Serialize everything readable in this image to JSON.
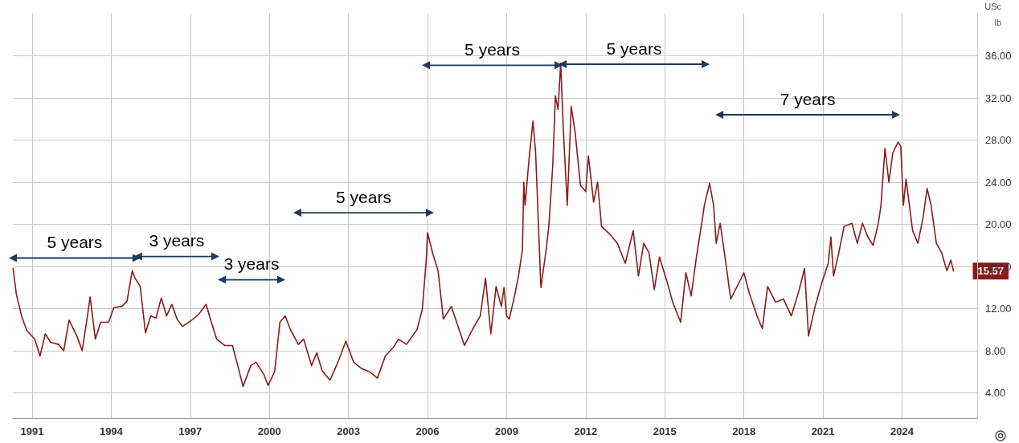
{
  "chart_data": {
    "type": "line",
    "xlim": [
      1990.27,
      2026.85
    ],
    "ylim": [
      1.6,
      40
    ],
    "xticks": [
      1991,
      1994,
      1997,
      2000,
      2003,
      2006,
      2009,
      2012,
      2015,
      2018,
      2021,
      2024
    ],
    "yticks": [
      {
        "value": 4,
        "label": "4.00"
      },
      {
        "value": 8,
        "label": "8.00"
      },
      {
        "value": 12,
        "label": "12.00"
      },
      {
        "value": 16,
        "label": "16.00"
      },
      {
        "value": 20,
        "label": "20.00"
      },
      {
        "value": 24,
        "label": "24.00"
      },
      {
        "value": 28,
        "label": "28.00"
      },
      {
        "value": 32,
        "label": "32.00"
      },
      {
        "value": 36,
        "label": "36.00"
      }
    ],
    "grid": true,
    "line_style": "solid",
    "series": [
      {
        "color": "#8b1a1a",
        "marker": "none",
        "x": [
          1990.28,
          1990.4,
          1990.6,
          1990.8,
          1991.1,
          1991.3,
          1991.5,
          1991.7,
          1992.0,
          1992.2,
          1992.4,
          1992.7,
          1992.9,
          1993.1,
          1993.2,
          1993.4,
          1993.6,
          1993.9,
          1994.1,
          1994.4,
          1994.6,
          1994.8,
          1994.9,
          1995.1,
          1995.3,
          1995.5,
          1995.7,
          1995.9,
          1996.1,
          1996.3,
          1996.5,
          1996.7,
          1997.0,
          1997.3,
          1997.6,
          1997.8,
          1998.0,
          1998.3,
          1998.6,
          1998.8,
          1999.0,
          1999.3,
          1999.5,
          1999.8,
          1999.95,
          2000.2,
          2000.4,
          2000.6,
          2000.8,
          2001.1,
          2001.3,
          2001.6,
          2001.8,
          2002.0,
          2002.3,
          2002.6,
          2002.9,
          2003.2,
          2003.5,
          2003.8,
          2004.1,
          2004.4,
          2004.7,
          2004.9,
          2005.2,
          2005.6,
          2005.8,
          2005.95,
          2006.0,
          2006.2,
          2006.4,
          2006.6,
          2006.9,
          2007.2,
          2007.4,
          2007.7,
          2008.0,
          2008.2,
          2008.4,
          2008.6,
          2008.8,
          2008.9,
          2009.0,
          2009.1,
          2009.3,
          2009.45,
          2009.6,
          2009.65,
          2009.7,
          2009.85,
          2010.0,
          2010.1,
          2010.3,
          2010.5,
          2010.6,
          2010.75,
          2010.85,
          2010.95,
          2011.05,
          2011.15,
          2011.3,
          2011.45,
          2011.6,
          2011.8,
          2012.0,
          2012.1,
          2012.3,
          2012.45,
          2012.6,
          2012.9,
          2013.2,
          2013.5,
          2013.8,
          2014.0,
          2014.2,
          2014.4,
          2014.6,
          2014.8,
          2015.1,
          2015.3,
          2015.6,
          2015.8,
          2016.0,
          2016.2,
          2016.4,
          2016.5,
          2016.7,
          2016.85,
          2016.95,
          2017.1,
          2017.3,
          2017.5,
          2017.8,
          2018.0,
          2018.2,
          2018.5,
          2018.7,
          2018.9,
          2019.2,
          2019.5,
          2019.8,
          2020.1,
          2020.3,
          2020.45,
          2020.7,
          2020.95,
          2021.2,
          2021.3,
          2021.4,
          2021.6,
          2021.8,
          2022.1,
          2022.3,
          2022.5,
          2022.7,
          2022.9,
          2023.1,
          2023.2,
          2023.35,
          2023.5,
          2023.65,
          2023.85,
          2023.95,
          2024.05,
          2024.15,
          2024.4,
          2024.6,
          2024.8,
          2024.95,
          2025.1,
          2025.3,
          2025.5,
          2025.7,
          2025.85,
          2025.95
        ],
        "values": [
          15.8,
          13.4,
          11.3,
          9.9,
          9.1,
          7.5,
          9.6,
          8.8,
          8.6,
          8.0,
          10.9,
          9.4,
          8.0,
          11.3,
          13.1,
          9.1,
          10.7,
          10.7,
          12.1,
          12.2,
          12.7,
          15.6,
          14.9,
          14.1,
          9.7,
          11.3,
          11.1,
          13.0,
          11.3,
          12.4,
          11.0,
          10.3,
          10.8,
          11.4,
          12.4,
          10.7,
          9.1,
          8.5,
          8.5,
          6.6,
          4.6,
          6.6,
          6.9,
          5.7,
          4.7,
          6.0,
          10.7,
          11.3,
          10.0,
          8.6,
          9.1,
          6.6,
          7.8,
          6.1,
          5.2,
          6.9,
          8.9,
          6.9,
          6.3,
          6.0,
          5.4,
          7.5,
          8.3,
          9.1,
          8.6,
          10.0,
          11.9,
          16.6,
          19.2,
          17.2,
          15.6,
          11.0,
          12.2,
          10.0,
          8.5,
          10.0,
          11.3,
          14.9,
          9.6,
          14.1,
          12.2,
          14.0,
          11.3,
          11.0,
          13.2,
          15.1,
          17.6,
          24.0,
          21.8,
          26.2,
          29.8,
          26.8,
          14.0,
          17.6,
          19.8,
          25.6,
          32.2,
          30.9,
          35.3,
          29.0,
          21.8,
          31.2,
          28.7,
          23.7,
          23.1,
          26.5,
          22.1,
          24.0,
          19.8,
          19.1,
          18.2,
          16.3,
          19.4,
          15.1,
          18.2,
          17.3,
          13.8,
          16.9,
          14.4,
          12.6,
          10.7,
          15.4,
          13.2,
          16.9,
          20.1,
          21.8,
          23.9,
          21.8,
          18.2,
          20.1,
          16.6,
          12.9,
          14.4,
          15.4,
          13.5,
          11.3,
          10.1,
          14.1,
          12.6,
          12.9,
          11.3,
          13.8,
          15.8,
          9.4,
          12.2,
          14.4,
          16.3,
          18.8,
          15.1,
          17.3,
          19.8,
          20.1,
          18.2,
          20.1,
          18.8,
          18.0,
          20.1,
          21.8,
          27.2,
          24.0,
          26.8,
          27.8,
          27.4,
          21.8,
          24.3,
          19.4,
          18.2,
          20.7,
          23.4,
          21.8,
          18.2,
          17.3,
          15.6,
          16.6,
          15.57
        ]
      },
      {
        "name": "5 years",
        "color": "#1f3a5a",
        "marker": "triangle",
        "x": [
          1990.27,
          1994.96
        ],
        "values": [
          16.8,
          16.8
        ]
      },
      {
        "name": "3 years",
        "color": "#1f3a5a",
        "marker": "triangle",
        "x": [
          1995.02,
          1997.95
        ],
        "values": [
          16.95,
          16.95
        ]
      },
      {
        "name": "3 years",
        "color": "#1f3a5a",
        "marker": "triangle",
        "x": [
          1998.2,
          2000.45
        ],
        "values": [
          14.74,
          14.74
        ]
      },
      {
        "name": "5 years",
        "color": "#1f3a5a",
        "marker": "triangle",
        "x": [
          2001.06,
          2006.09
        ],
        "values": [
          21.1,
          21.1
        ]
      },
      {
        "name": "5 years",
        "color": "#1f3a5a",
        "marker": "triangle",
        "x": [
          2005.94,
          2010.97
        ],
        "values": [
          35.1,
          35.1
        ]
      },
      {
        "name": "5 years",
        "color": "#1f3a5a",
        "marker": "triangle",
        "x": [
          2011.12,
          2016.55
        ],
        "values": [
          35.2,
          35.2
        ]
      },
      {
        "name": "7 years",
        "color": "#1f3a5a",
        "marker": "triangle",
        "x": [
          2017.07,
          2023.77
        ],
        "values": [
          30.4,
          30.4
        ]
      }
    ],
    "annotations": [
      "USc",
      "lb",
      {
        "text": "15.57",
        "x": 2025.95,
        "y": 15.57
      }
    ]
  }
}
